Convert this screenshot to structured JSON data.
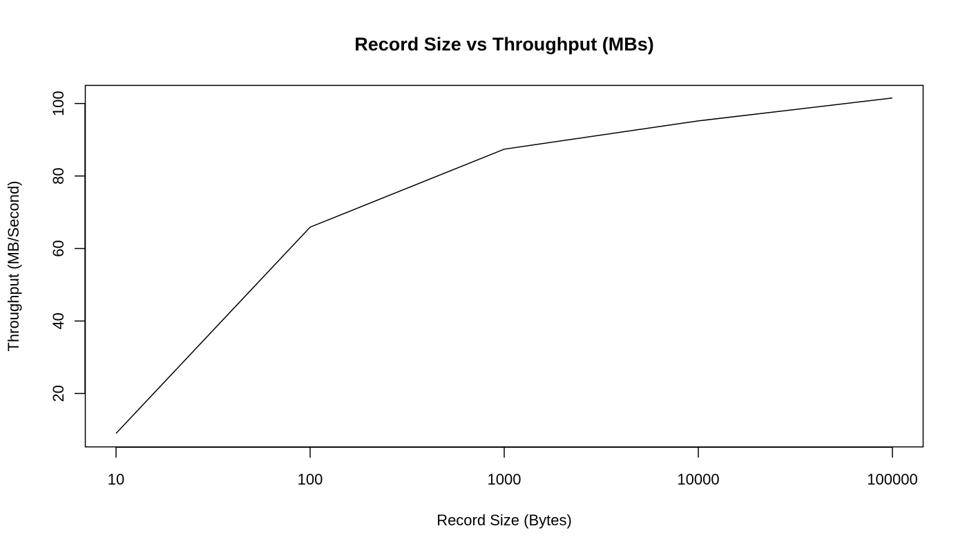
{
  "chart_data": {
    "type": "line",
    "title": "Record Size vs Throughput (MBs)",
    "xlabel": "Record Size (Bytes)",
    "ylabel": "Throughput (MB/Second)",
    "x_scale": "log",
    "x": [
      10,
      100,
      1000,
      10000,
      100000
    ],
    "x_tick_labels": [
      "10",
      "100",
      "1000",
      "10000",
      "100000"
    ],
    "y_ticks": [
      20,
      40,
      60,
      80,
      100
    ],
    "y_tick_labels": [
      "20",
      "40",
      "60",
      "80",
      "100"
    ],
    "ylim": [
      5,
      105
    ],
    "grid": false,
    "legend": null,
    "series": [
      {
        "name": "Throughput",
        "values": [
          9.0,
          65.9,
          87.4,
          95.2,
          101.5
        ],
        "color": "#000000"
      }
    ]
  }
}
